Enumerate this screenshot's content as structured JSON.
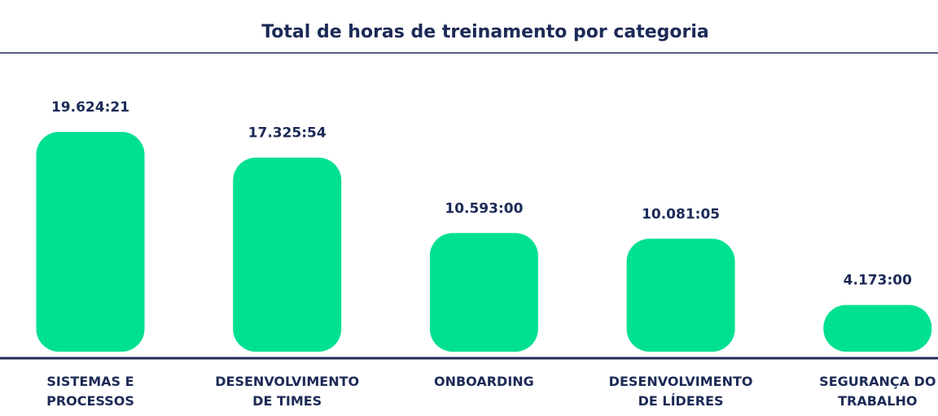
{
  "chart_data": {
    "type": "bar",
    "title": "Total de horas de treinamento por categoria",
    "categories": [
      [
        "SISTEMAS E",
        "PROCESSOS"
      ],
      [
        "DESENVOLVIMENTO",
        "DE TIMES"
      ],
      [
        "ONBOARDING"
      ],
      [
        "DESENVOLVIMENTO",
        "DE LÍDERES"
      ],
      [
        "SEGURANÇA DO",
        "TRABALHO"
      ]
    ],
    "values": [
      19624.35,
      17325.9,
      10593,
      10081.0833,
      4173
    ],
    "value_labels": [
      "19.624:21",
      "17.325:54",
      "10.593:00",
      "10.081:05",
      "4.173:00"
    ],
    "color": "#00e091"
  }
}
